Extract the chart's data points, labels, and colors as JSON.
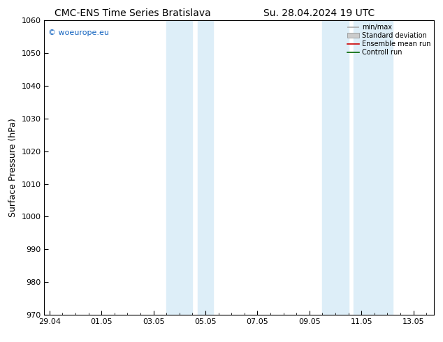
{
  "title_left": "CMC-ENS Time Series Bratislava",
  "title_right": "Su. 28.04.2024 19 UTC",
  "ylabel": "Surface Pressure (hPa)",
  "ylim": [
    970,
    1060
  ],
  "yticks": [
    970,
    980,
    990,
    1000,
    1010,
    1020,
    1030,
    1040,
    1050,
    1060
  ],
  "xtick_labels": [
    "29.04",
    "01.05",
    "03.05",
    "05.05",
    "07.05",
    "09.05",
    "11.05",
    "13.05"
  ],
  "xtick_positions": [
    0,
    2,
    4,
    6,
    8,
    10,
    12,
    14
  ],
  "xlim": [
    -0.2,
    14.8
  ],
  "shaded_regions": [
    {
      "start": 4.5,
      "end": 5.5
    },
    {
      "start": 5.7,
      "end": 6.3
    },
    {
      "start": 10.5,
      "end": 11.5
    },
    {
      "start": 11.7,
      "end": 13.2
    }
  ],
  "shaded_color": "#ddeef8",
  "background_color": "#ffffff",
  "legend_items": [
    {
      "label": "min/max",
      "color": "#aaaaaa",
      "type": "range"
    },
    {
      "label": "Standard deviation",
      "color": "#cccccc",
      "type": "fill"
    },
    {
      "label": "Ensemble mean run",
      "color": "#cc0000",
      "type": "line"
    },
    {
      "label": "Controll run",
      "color": "#006600",
      "type": "line"
    }
  ],
  "watermark_text": "© woeurope.eu",
  "watermark_color": "#1565c0",
  "title_fontsize": 10,
  "tick_fontsize": 8,
  "ylabel_fontsize": 9,
  "legend_fontsize": 7
}
